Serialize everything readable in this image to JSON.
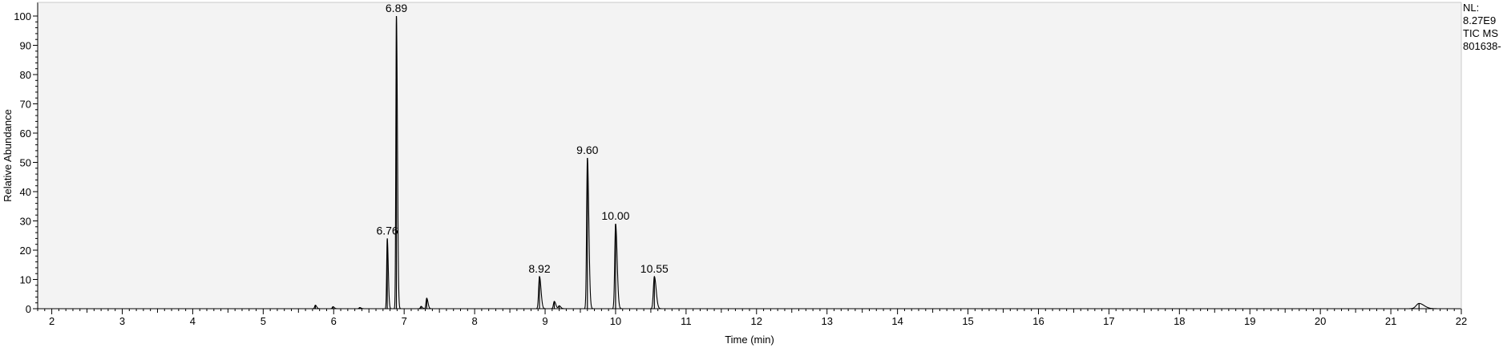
{
  "chart_data": {
    "type": "line",
    "xlabel": "Time (min)",
    "ylabel": "Relative Abundance",
    "xlim": [
      1.8,
      22
    ],
    "ylim": [
      0,
      100
    ],
    "x_ticks": [
      2,
      3,
      4,
      5,
      6,
      7,
      8,
      9,
      10,
      11,
      12,
      13,
      14,
      15,
      16,
      17,
      18,
      19,
      20,
      21,
      22
    ],
    "y_ticks": [
      0,
      10,
      20,
      30,
      40,
      50,
      60,
      70,
      80,
      90,
      100
    ],
    "grid": false,
    "info_labels": [
      "NL:",
      "8.27E9",
      "TIC  MS",
      "801638-"
    ],
    "peaks": [
      {
        "rt": 5.74,
        "height": 1.2,
        "width": 0.01,
        "label": ""
      },
      {
        "rt": 5.99,
        "height": 0.7,
        "width": 0.01,
        "label": ""
      },
      {
        "rt": 6.37,
        "height": 0.4,
        "width": 0.01,
        "label": ""
      },
      {
        "rt": 6.76,
        "height": 24,
        "width": 0.008,
        "label": "6.76"
      },
      {
        "rt": 6.89,
        "height": 100,
        "width": 0.008,
        "label": "6.89"
      },
      {
        "rt": 7.24,
        "height": 0.8,
        "width": 0.01,
        "label": ""
      },
      {
        "rt": 7.32,
        "height": 3.6,
        "width": 0.01,
        "label": ""
      },
      {
        "rt": 8.92,
        "height": 11,
        "width": 0.012,
        "label": "8.92"
      },
      {
        "rt": 9.13,
        "height": 2.5,
        "width": 0.012,
        "label": ""
      },
      {
        "rt": 9.2,
        "height": 1.0,
        "width": 0.012,
        "label": ""
      },
      {
        "rt": 9.6,
        "height": 51.5,
        "width": 0.011,
        "label": "9.60"
      },
      {
        "rt": 10.0,
        "height": 29,
        "width": 0.012,
        "label": "10.00"
      },
      {
        "rt": 10.55,
        "height": 11,
        "width": 0.014,
        "label": "10.55"
      },
      {
        "rt": 21.4,
        "height": 1.8,
        "width": 0.04,
        "label": ""
      }
    ],
    "trace_color": "#000000",
    "background_color": "#f3f3f3"
  }
}
